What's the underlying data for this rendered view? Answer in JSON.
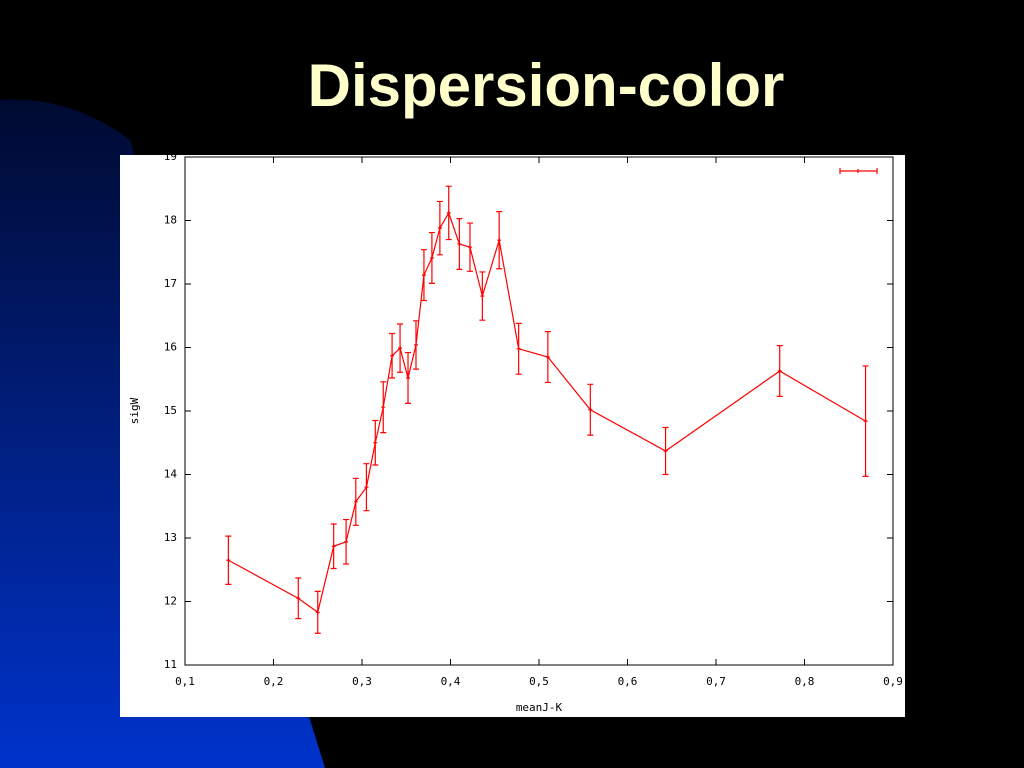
{
  "chart_data": {
    "type": "line",
    "title": "Dispersion-color",
    "xlabel": "meanJ-K",
    "ylabel": "sigW",
    "x": [
      0.149,
      0.228,
      0.25,
      0.268,
      0.282,
      0.293,
      0.305,
      0.315,
      0.324,
      0.334,
      0.343,
      0.352,
      0.361,
      0.37,
      0.379,
      0.388,
      0.398,
      0.41,
      0.422,
      0.436,
      0.455,
      0.477,
      0.51,
      0.558,
      0.643,
      0.772,
      0.869
    ],
    "series": [
      {
        "color": "#ff0000",
        "values": [
          12.65,
          12.05,
          11.83,
          12.87,
          12.94,
          13.57,
          13.8,
          14.5,
          15.06,
          15.87,
          15.99,
          15.52,
          16.04,
          17.14,
          17.41,
          17.88,
          18.12,
          17.63,
          17.58,
          16.81,
          17.69,
          15.98,
          15.85,
          15.02,
          14.37,
          15.63,
          14.84
        ],
        "errors": [
          0.38,
          0.32,
          0.33,
          0.35,
          0.35,
          0.37,
          0.37,
          0.35,
          0.4,
          0.35,
          0.38,
          0.4,
          0.38,
          0.4,
          0.4,
          0.42,
          0.42,
          0.4,
          0.38,
          0.38,
          0.45,
          0.4,
          0.4,
          0.4,
          0.37,
          0.4,
          0.87
        ]
      }
    ],
    "xlim": [
      0.1,
      0.9
    ],
    "ylim": [
      11,
      19
    ],
    "xticks": [
      {
        "value": 0.1,
        "label": "0,1"
      },
      {
        "value": 0.2,
        "label": "0,2"
      },
      {
        "value": 0.3,
        "label": "0,3"
      },
      {
        "value": 0.4,
        "label": "0,4"
      },
      {
        "value": 0.5,
        "label": "0,5"
      },
      {
        "value": 0.6,
        "label": "0,6"
      },
      {
        "value": 0.7,
        "label": "0,7"
      },
      {
        "value": 0.8,
        "label": "0,8"
      },
      {
        "value": 0.9,
        "label": "0,9"
      }
    ],
    "yticks": [
      11,
      12,
      13,
      14,
      15,
      16,
      17,
      18,
      19
    ]
  }
}
